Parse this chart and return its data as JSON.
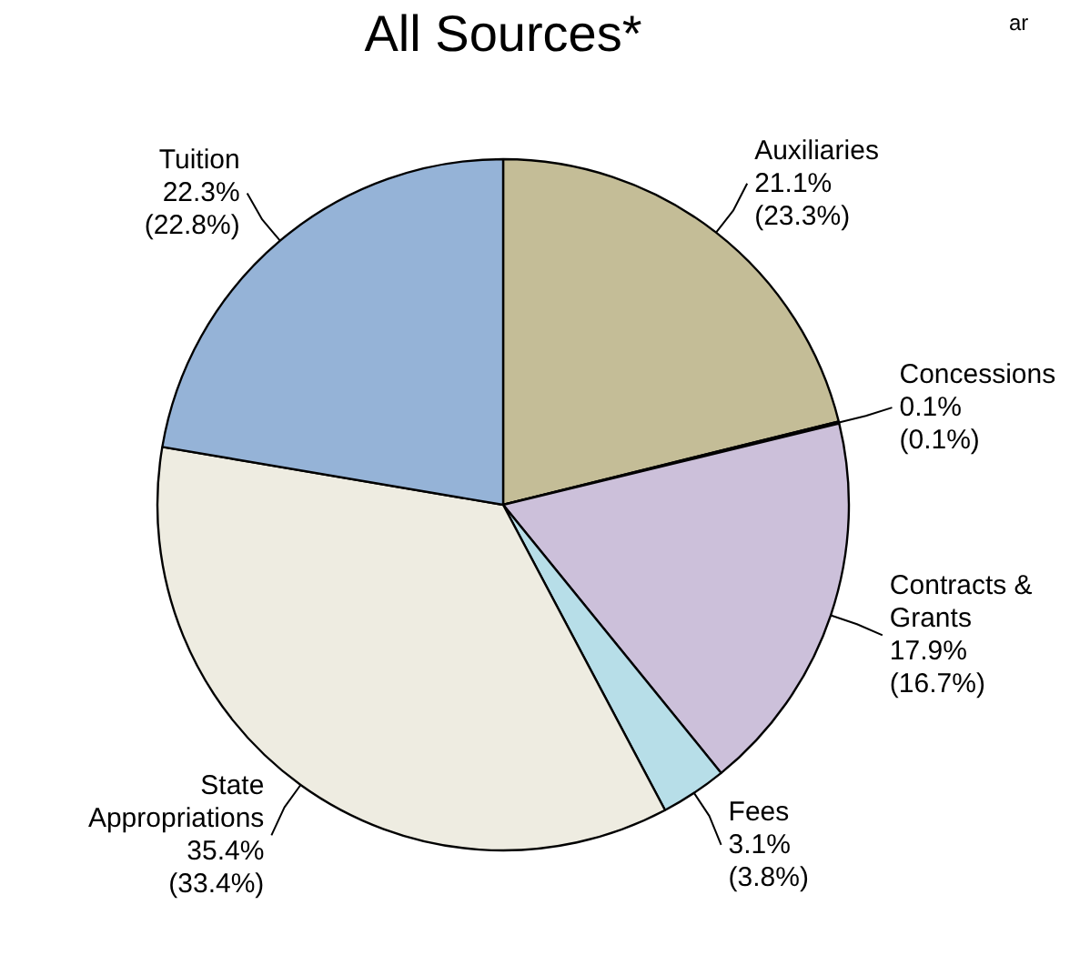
{
  "chart_data": {
    "type": "pie",
    "title": "All Sources*",
    "categories": [
      "Auxiliaries",
      "Concessions",
      "Contracts & Grants",
      "Fees",
      "State Appropriations",
      "Tuition"
    ],
    "values": [
      21.1,
      0.1,
      17.9,
      3.1,
      35.4,
      22.3
    ],
    "colors": [
      "#c4bd97",
      "#c4bd97",
      "#ccc0da",
      "#b7dee8",
      "#eeece1",
      "#95b3d7"
    ],
    "value_labels": [
      "21.1%\n(23.3%)",
      "0.1%\n(0.1%)",
      "17.9%\n(16.7%)",
      "3.1%\n(3.8%)",
      "35.4%\n(33.4%)",
      "22.3%\n(22.8%)"
    ],
    "annotations": [
      "ar"
    ]
  }
}
